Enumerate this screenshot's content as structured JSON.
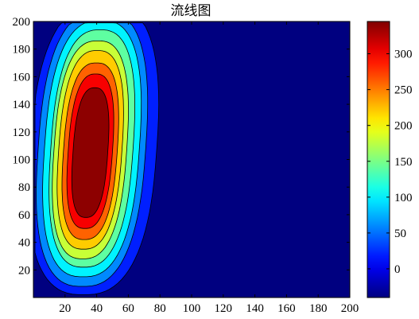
{
  "chart_data": {
    "type": "filled-contour",
    "title": "流线图",
    "x_axis": {
      "range": [
        0,
        200
      ],
      "ticks": [
        20,
        40,
        60,
        80,
        100,
        120,
        140,
        160,
        180,
        200
      ]
    },
    "y_axis": {
      "range": [
        0,
        200
      ],
      "ticks": [
        20,
        40,
        60,
        80,
        100,
        120,
        140,
        160,
        180,
        200
      ]
    },
    "colorbar": {
      "range": [
        -40,
        345
      ],
      "ticks": [
        0,
        50,
        100,
        150,
        200,
        250,
        300
      ],
      "colormap": "jet",
      "position": "right"
    },
    "levels": [
      0,
      40,
      80,
      120,
      160,
      200,
      240,
      280,
      320
    ],
    "background_color": "#000080",
    "grid": false
  }
}
